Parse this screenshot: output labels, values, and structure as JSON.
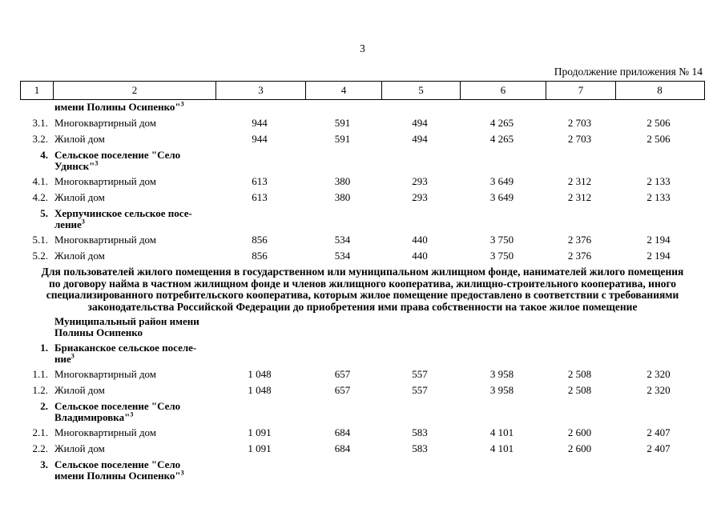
{
  "page": {
    "number": "3",
    "continuation_note": "Продолжение приложения № 14"
  },
  "table": {
    "column_headers": [
      "1",
      "2",
      "3",
      "4",
      "5",
      "6",
      "7",
      "8"
    ],
    "rows_top": [
      {
        "num": "",
        "label_lines": [
          "имени Полины Осипенко\""
        ],
        "footnote_sup": "3",
        "bold": true,
        "values": []
      },
      {
        "num": "3.1.",
        "label_lines": [
          "Многоквартирный дом"
        ],
        "bold": false,
        "values": [
          "944",
          "591",
          "494",
          "4 265",
          "2 703",
          "2 506"
        ]
      },
      {
        "num": "3.2.",
        "label_lines": [
          "Жилой дом"
        ],
        "bold": false,
        "values": [
          "944",
          "591",
          "494",
          "4 265",
          "2 703",
          "2 506"
        ]
      },
      {
        "num": "4.",
        "label_lines": [
          "Сельское поселение \"Село",
          "Удинск\""
        ],
        "footnote_sup": "3",
        "bold": true,
        "values": []
      },
      {
        "num": "4.1.",
        "label_lines": [
          "Многоквартирный дом"
        ],
        "bold": false,
        "values": [
          "613",
          "380",
          "293",
          "3 649",
          "2 312",
          "2 133"
        ]
      },
      {
        "num": "4.2.",
        "label_lines": [
          "Жилой дом"
        ],
        "bold": false,
        "values": [
          "613",
          "380",
          "293",
          "3 649",
          "2 312",
          "2 133"
        ]
      },
      {
        "num": "5.",
        "label_lines": [
          "Херпучинское сельское посе-",
          "ление"
        ],
        "footnote_sup": "3",
        "bold": true,
        "values": []
      },
      {
        "num": "5.1.",
        "label_lines": [
          "Многоквартирный дом"
        ],
        "bold": false,
        "values": [
          "856",
          "534",
          "440",
          "3 750",
          "2 376",
          "2 194"
        ]
      },
      {
        "num": "5.2.",
        "label_lines": [
          "Жилой дом"
        ],
        "bold": false,
        "values": [
          "856",
          "534",
          "440",
          "3 750",
          "2 376",
          "2 194"
        ]
      }
    ],
    "rows_bottom": [
      {
        "num": "",
        "label_lines": [
          "Муниципальный район имени",
          "Полины Осипенко"
        ],
        "bold": true,
        "values": []
      },
      {
        "num": "1.",
        "label_lines": [
          "Бриаканское сельское поселе-",
          "ние"
        ],
        "footnote_sup": "3",
        "bold": true,
        "values": []
      },
      {
        "num": "1.1.",
        "label_lines": [
          "Многоквартирный дом"
        ],
        "bold": false,
        "values": [
          "1 048",
          "657",
          "557",
          "3 958",
          "2 508",
          "2 320"
        ]
      },
      {
        "num": "1.2.",
        "label_lines": [
          "Жилой дом"
        ],
        "bold": false,
        "values": [
          "1 048",
          "657",
          "557",
          "3 958",
          "2 508",
          "2 320"
        ]
      },
      {
        "num": "2.",
        "label_lines": [
          "Сельское поселение \"Село",
          "Владимировка\""
        ],
        "footnote_sup": "3",
        "bold": true,
        "values": []
      },
      {
        "num": "2.1.",
        "label_lines": [
          "Многоквартирный дом"
        ],
        "bold": false,
        "values": [
          "1 091",
          "684",
          "583",
          "4 101",
          "2 600",
          "2 407"
        ]
      },
      {
        "num": "2.2.",
        "label_lines": [
          "Жилой дом"
        ],
        "bold": false,
        "values": [
          "1 091",
          "684",
          "583",
          "4 101",
          "2 600",
          "2 407"
        ]
      },
      {
        "num": "3.",
        "label_lines": [
          "Сельское поселение \"Село",
          "имени Полины Осипенко\""
        ],
        "footnote_sup": "3",
        "bold": true,
        "values": []
      }
    ]
  },
  "note_paragraph": {
    "lines": [
      "Для пользователей жилого помещения в государственном или муниципальном жилищном фонде, нанимателей жилого помещения",
      "по договору найма в частном жилищном фонде и членов жилищного кооператива, жилищно-строительного кооператива, иного",
      "специализированного потребительского кооператива, которым жилое помещение предоставлено в соответствии с требованиями",
      "законодательства Российской Федерации до приобретения ими права собственности на такое жилое помещение"
    ]
  }
}
